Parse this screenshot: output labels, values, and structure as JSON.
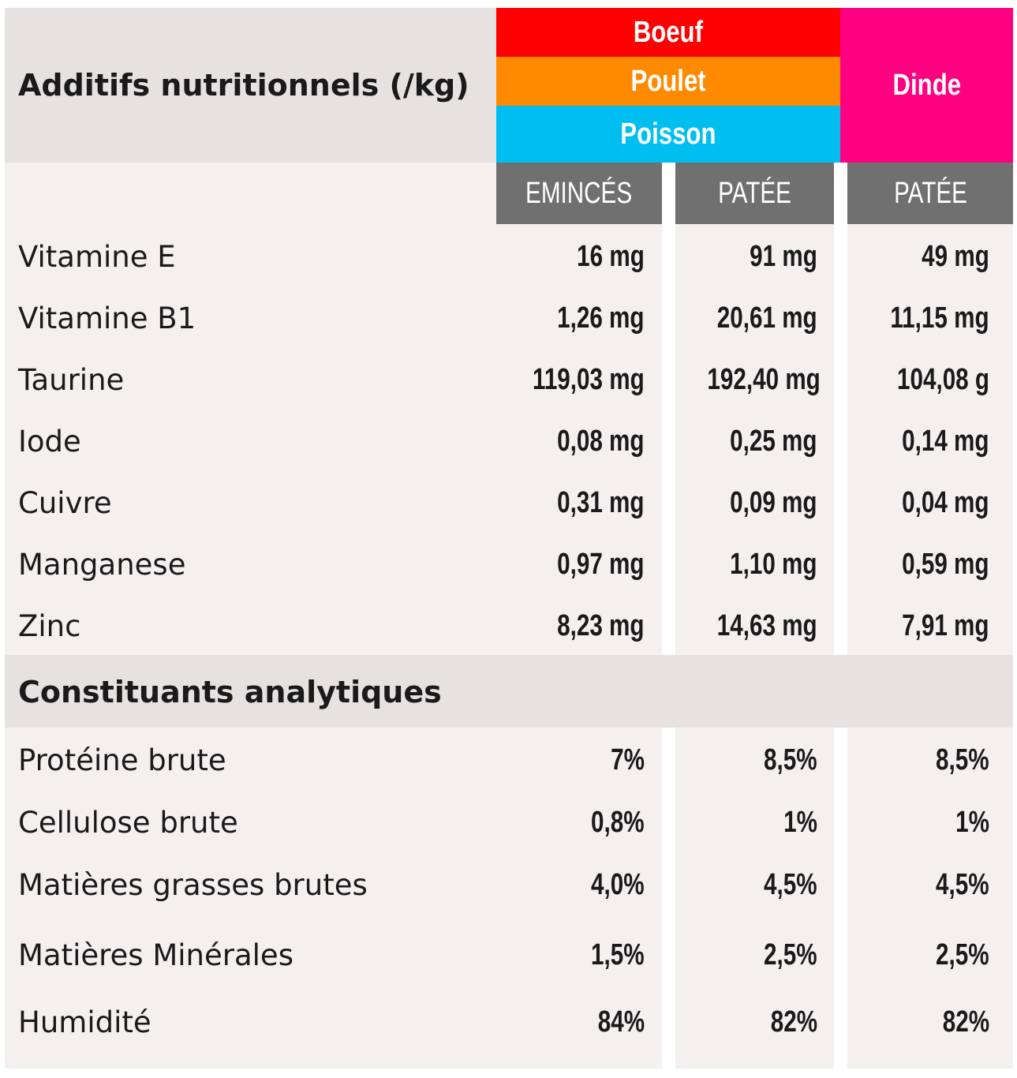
{
  "header": {
    "title": "Additifs nutritionnels (/kg)",
    "categories": [
      {
        "label": "Boeuf",
        "color": "#ff0000"
      },
      {
        "label": "Poulet",
        "color": "#ff8a00"
      },
      {
        "label": "Poisson",
        "color": "#00bff0"
      },
      {
        "label": "Dinde",
        "color": "#ff0080"
      }
    ],
    "columns": [
      "EMINCÉS",
      "PATÉE",
      "PATÉE"
    ]
  },
  "additives": [
    {
      "name": "Vitamine E",
      "values": [
        "16 mg",
        "91 mg",
        "49 mg"
      ]
    },
    {
      "name": "Vitamine B1",
      "values": [
        "1,26 mg",
        "20,61 mg",
        "11,15 mg"
      ]
    },
    {
      "name": "Taurine",
      "values": [
        "119,03 mg",
        "192,40 mg",
        "104,08 g"
      ]
    },
    {
      "name": "Iode",
      "values": [
        "0,08 mg",
        "0,25 mg",
        "0,14 mg"
      ]
    },
    {
      "name": "Cuivre",
      "values": [
        "0,31 mg",
        "0,09 mg",
        "0,04 mg"
      ]
    },
    {
      "name": "Manganese",
      "values": [
        "0,97 mg",
        "1,10 mg",
        "0,59 mg"
      ]
    },
    {
      "name": "Zinc",
      "values": [
        "8,23 mg",
        "14,63 mg",
        "7,91 mg"
      ]
    }
  ],
  "analytical": {
    "title": "Constituants analytiques",
    "rows": [
      {
        "name": "Protéine brute",
        "values": [
          "7%",
          "8,5%",
          "8,5%"
        ]
      },
      {
        "name": "Cellulose brute",
        "values": [
          "0,8%",
          "1%",
          "1%"
        ]
      },
      {
        "name": "Matières grasses brutes",
        "values": [
          "4,0%",
          "4,5%",
          "4,5%"
        ]
      },
      {
        "name": "Matières Minérales",
        "values": [
          "1,5%",
          "2,5%",
          "2,5%"
        ]
      },
      {
        "name": "Humidité",
        "values": [
          "84%",
          "82%",
          "82%"
        ]
      }
    ]
  }
}
